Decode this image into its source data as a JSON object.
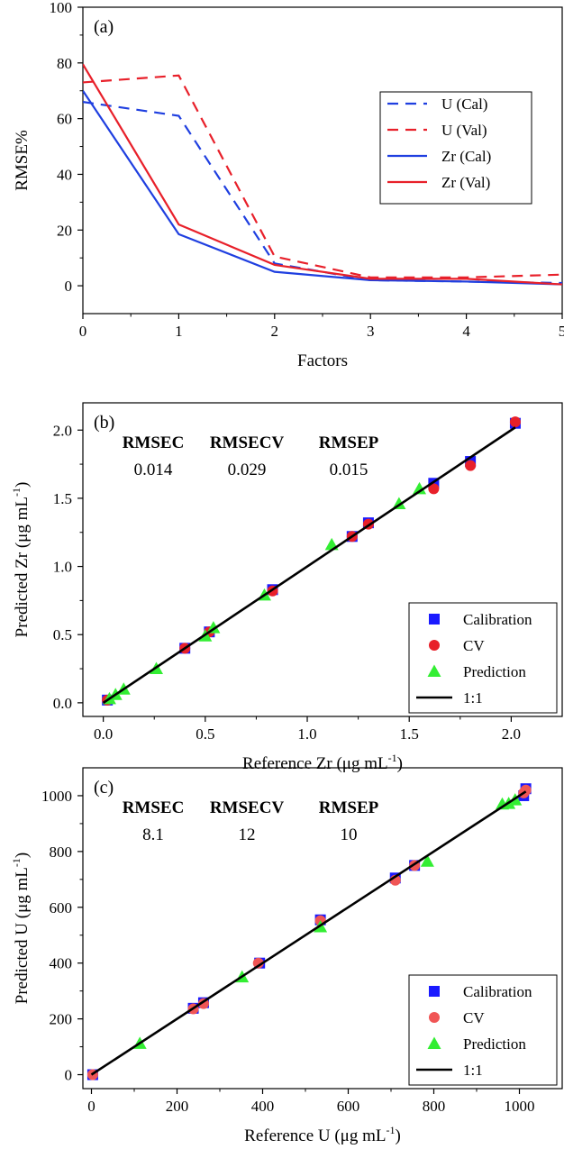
{
  "chart_data": [
    {
      "panel": "(a)",
      "type": "line",
      "xlabel": "Factors",
      "ylabel": "RMSE%",
      "xlim": [
        0,
        5
      ],
      "ylim": [
        -10,
        100
      ],
      "xticks": [
        "0",
        "1",
        "2",
        "3",
        "4",
        "5"
      ],
      "yticks": [
        "0",
        "20",
        "40",
        "60",
        "80",
        "100"
      ],
      "legend_position": "center-right",
      "series": [
        {
          "name": "U (Cal)",
          "color": "#1f3fe0",
          "dash": true,
          "x": [
            0,
            1,
            2,
            3,
            4,
            5
          ],
          "y": [
            66,
            61,
            8,
            2,
            1.5,
            1
          ]
        },
        {
          "name": "U (Val)",
          "color": "#e8202a",
          "dash": true,
          "x": [
            0,
            1,
            2,
            3,
            4,
            5
          ],
          "y": [
            73,
            75.5,
            10.5,
            3,
            3,
            4
          ]
        },
        {
          "name": "Zr (Cal)",
          "color": "#1f3fe0",
          "dash": false,
          "x": [
            0,
            1,
            2,
            3,
            4,
            5
          ],
          "y": [
            70,
            18.5,
            5,
            2,
            1.5,
            0.5
          ]
        },
        {
          "name": "Zr (Val)",
          "color": "#e8202a",
          "dash": false,
          "x": [
            0,
            1,
            2,
            3,
            4,
            5
          ],
          "y": [
            79.5,
            22,
            7.5,
            2.5,
            2.5,
            0.5
          ]
        }
      ]
    },
    {
      "panel": "(b)",
      "type": "scatter",
      "xlabel": "Reference Zr (μg mL",
      "ylabel": "Predicted Zr (μg mL",
      "unit_superscript": "-1",
      "xlim": [
        -0.1,
        2.25
      ],
      "ylim": [
        -0.1,
        2.2
      ],
      "xticks": [
        "0.0",
        "0.5",
        "1.0",
        "1.5",
        "2.0"
      ],
      "yticks": [
        "0.0",
        "0.5",
        "1.0",
        "1.5",
        "2.0"
      ],
      "legend_position": "bottom-right",
      "stats": {
        "headers": [
          "RMSEC",
          "RMSECV",
          "RMSEP"
        ],
        "values": [
          "0.014",
          "0.029",
          "0.015"
        ]
      },
      "series": [
        {
          "name": "Calibration",
          "marker": "square",
          "color": "#1a1aff",
          "x": [
            0.02,
            0.4,
            0.52,
            0.83,
            1.22,
            1.3,
            1.62,
            1.8,
            2.02
          ],
          "y": [
            0.02,
            0.4,
            0.52,
            0.83,
            1.22,
            1.32,
            1.61,
            1.77,
            2.05
          ]
        },
        {
          "name": "CV",
          "marker": "circle",
          "color": "#e8202a",
          "x": [
            0.02,
            0.4,
            0.52,
            0.83,
            1.22,
            1.3,
            1.62,
            1.8,
            2.02
          ],
          "y": [
            0.02,
            0.4,
            0.52,
            0.82,
            1.22,
            1.31,
            1.57,
            1.74,
            2.06
          ]
        },
        {
          "name": "Prediction",
          "marker": "triangle",
          "color": "#33ee33",
          "x": [
            0.03,
            0.06,
            0.1,
            0.26,
            0.5,
            0.54,
            0.79,
            1.12,
            1.45,
            1.55
          ],
          "y": [
            0.03,
            0.06,
            0.1,
            0.25,
            0.49,
            0.55,
            0.79,
            1.16,
            1.46,
            1.57
          ]
        },
        {
          "name": "1:1",
          "marker": "line",
          "color": "#000000",
          "x": [
            0,
            2.02
          ],
          "y": [
            0,
            2.02
          ]
        }
      ]
    },
    {
      "panel": "(c)",
      "type": "scatter",
      "xlabel": "Reference U (μg mL",
      "ylabel": "Predicted U (μg mL",
      "unit_superscript": "-1",
      "xlim": [
        -20,
        1100
      ],
      "ylim": [
        -50,
        1100
      ],
      "xticks": [
        "0",
        "200",
        "400",
        "600",
        "800",
        "1000"
      ],
      "yticks": [
        "0",
        "200",
        "400",
        "600",
        "800",
        "1000"
      ],
      "legend_position": "bottom-right",
      "stats": {
        "headers": [
          "RMSEC",
          "RMSECV",
          "RMSEP"
        ],
        "values": [
          "8.1",
          "12",
          "10"
        ]
      },
      "series": [
        {
          "name": "Calibration",
          "marker": "square",
          "color": "#1a1aff",
          "x": [
            3,
            238,
            262,
            393,
            535,
            710,
            755,
            1010,
            1015
          ],
          "y": [
            0,
            238,
            258,
            400,
            555,
            705,
            750,
            1000,
            1025
          ]
        },
        {
          "name": "CV",
          "marker": "circle",
          "color": "#f05555",
          "x": [
            3,
            238,
            262,
            390,
            535,
            710,
            755,
            1010,
            1015
          ],
          "y": [
            0,
            236,
            255,
            400,
            552,
            697,
            750,
            1010,
            1020
          ]
        },
        {
          "name": "Prediction",
          "marker": "triangle",
          "color": "#33ee33",
          "x": [
            113,
            352,
            535,
            785,
            960,
            975,
            990
          ],
          "y": [
            112,
            350,
            530,
            765,
            970,
            972,
            985
          ]
        },
        {
          "name": "1:1",
          "marker": "line",
          "color": "#000000",
          "x": [
            0,
            1015
          ],
          "y": [
            0,
            1015
          ]
        }
      ]
    }
  ]
}
